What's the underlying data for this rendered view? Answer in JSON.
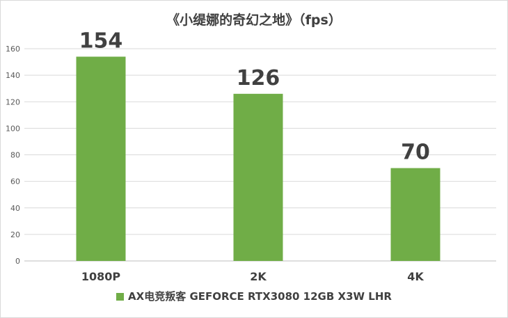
{
  "colors": {
    "bar": "#70ad47",
    "grid": "#d9d9d9",
    "axis": "#bfbfbf"
  },
  "chart_data": {
    "type": "bar",
    "title": "《小缇娜的奇幻之地》（fps）",
    "categories": [
      "1080P",
      "2K",
      "4K"
    ],
    "series": [
      {
        "name": "AX电竞叛客 GEFORCE RTX3080 12GB X3W LHR",
        "values": [
          154,
          126,
          70
        ]
      }
    ],
    "ylim": [
      0,
      160
    ],
    "yticks": [
      0,
      20,
      40,
      60,
      80,
      100,
      120,
      140,
      160
    ],
    "xlabel": "",
    "ylabel": "",
    "grid": true,
    "legend_position": "bottom"
  }
}
